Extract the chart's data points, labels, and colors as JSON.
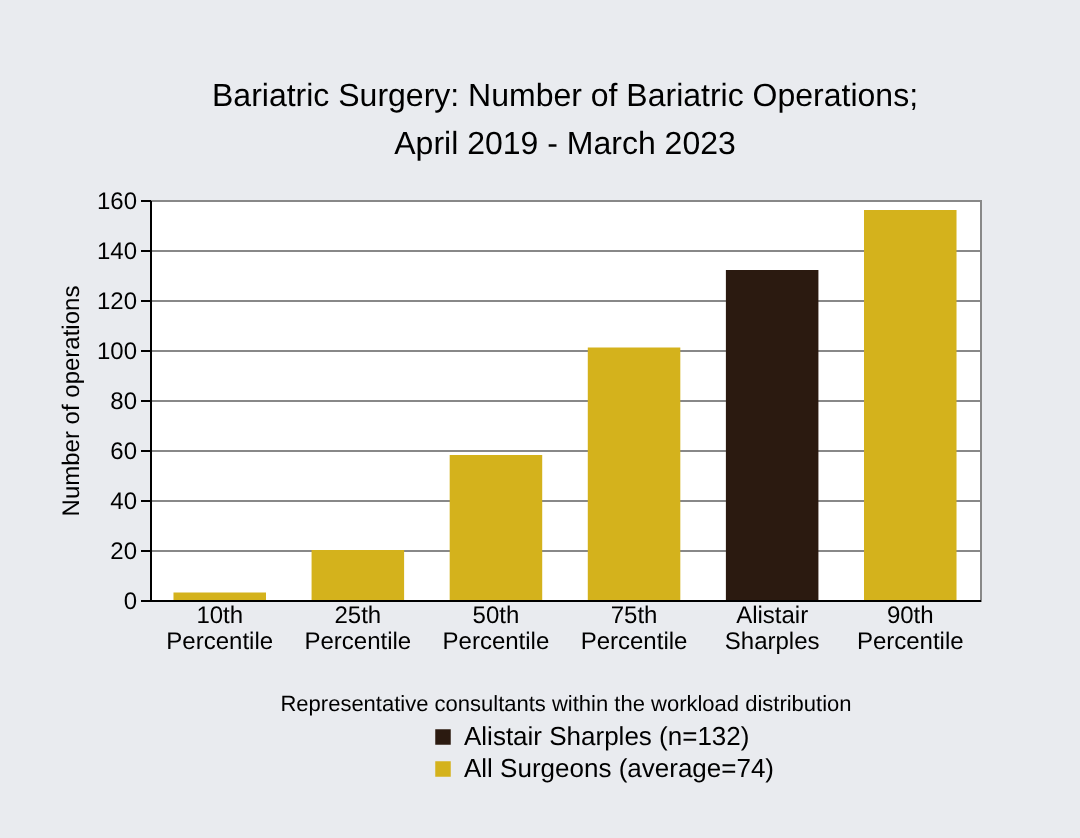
{
  "chart_data": {
    "type": "bar",
    "title": [
      "Bariatric Surgery: Number of Bariatric Operations;",
      "April 2019 - March 2023"
    ],
    "xlabel": "Representative consultants within the workload distribution",
    "ylabel": "Number of operations",
    "categories": [
      "10th Percentile",
      "25th Percentile",
      "50th Percentile",
      "75th Percentile",
      "Alistair Sharples",
      "90th Percentile"
    ],
    "series": [
      {
        "name": "Alistair Sharples (n=132)",
        "color": "#2b1a10",
        "values": [
          null,
          null,
          null,
          null,
          132,
          null
        ]
      },
      {
        "name": "All Surgeons (average=74)",
        "color": "#d4b21c",
        "values": [
          3,
          20,
          58,
          101,
          null,
          156
        ]
      }
    ],
    "ylim": [
      0,
      160
    ],
    "yticks": [
      0,
      20,
      40,
      60,
      80,
      100,
      120,
      140,
      160
    ],
    "grid": "y",
    "legend": "bottom"
  }
}
